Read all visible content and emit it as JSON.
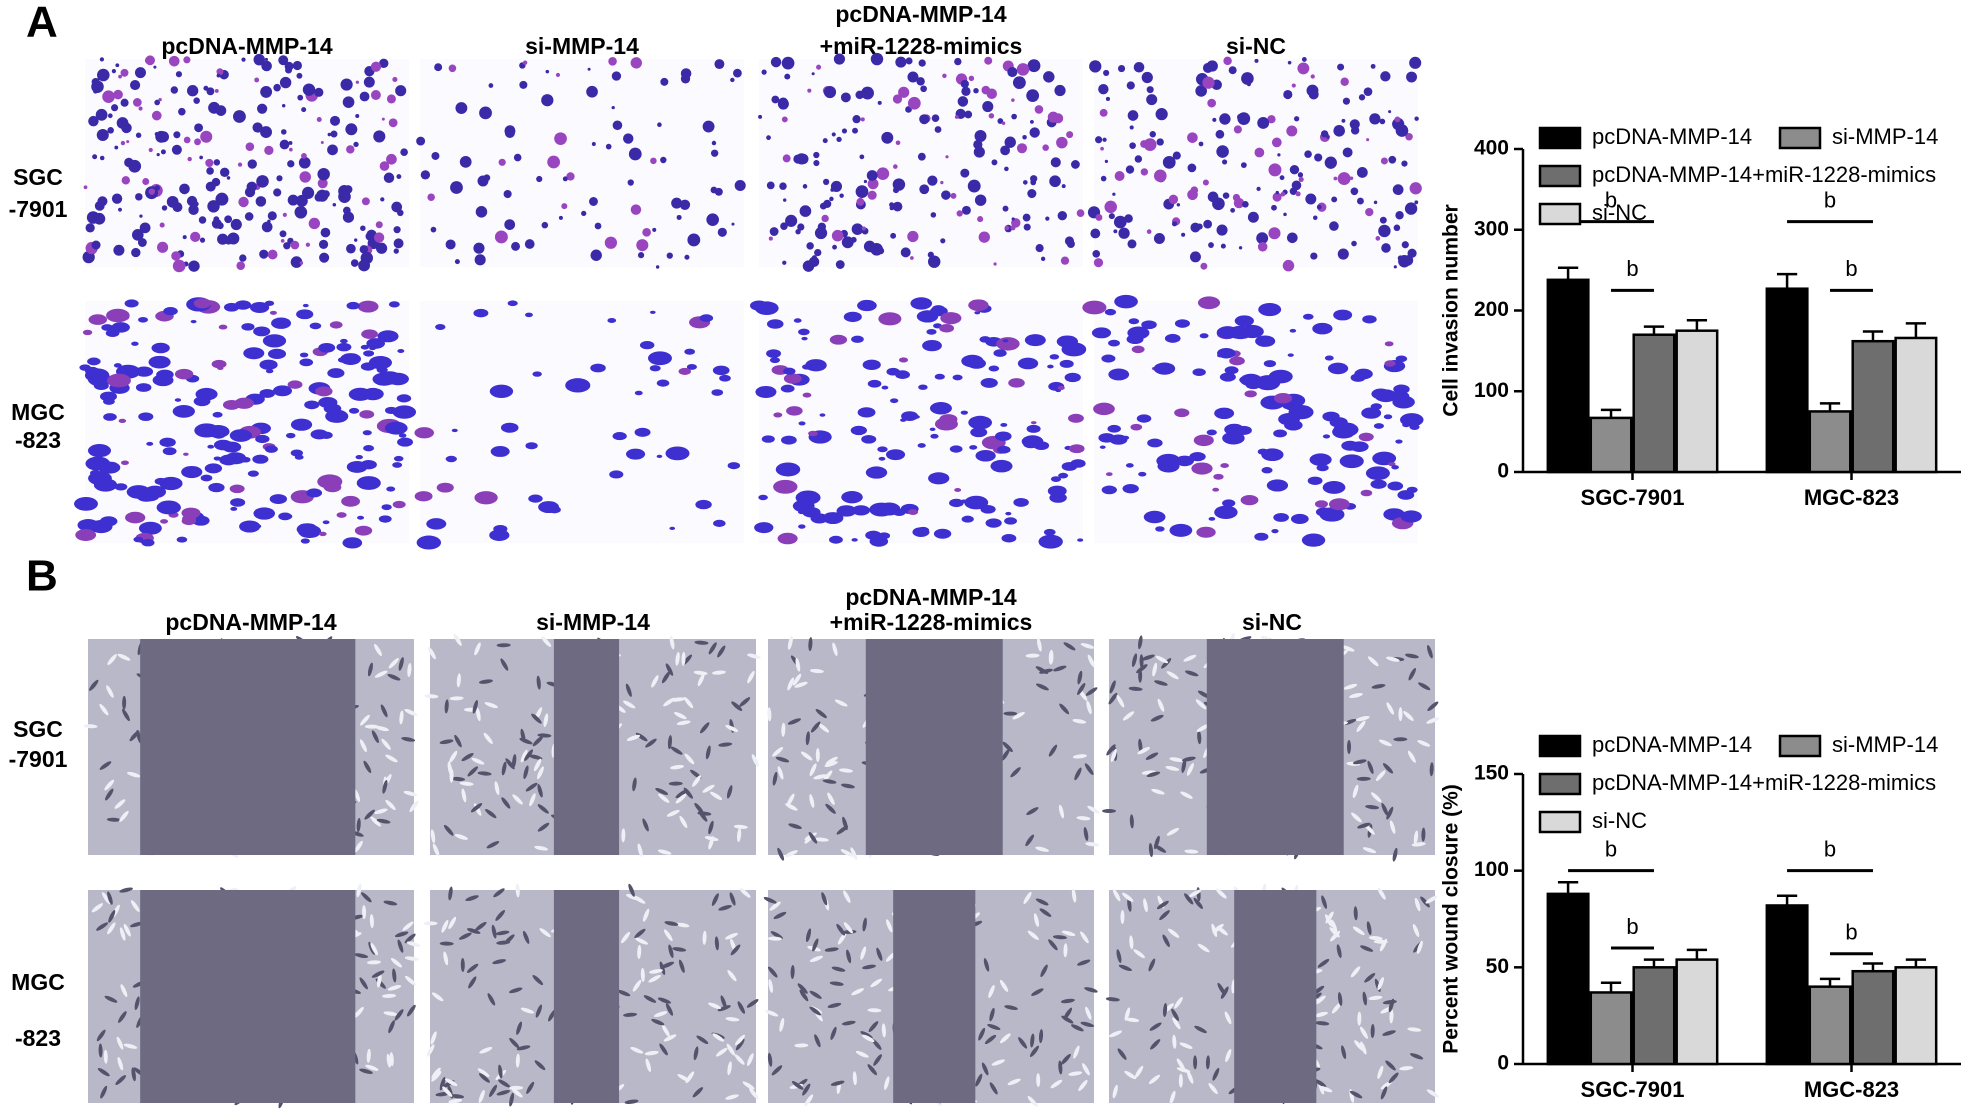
{
  "panels": [
    {
      "label": "A",
      "columns": [
        [
          "pcDNA-MMP-14"
        ],
        [
          "si-MMP-14"
        ],
        [
          "pcDNA-MMP-14",
          "+miR-1228-mimics"
        ],
        [
          "si-NC"
        ]
      ],
      "rows": [
        [
          "SGC",
          "-7901"
        ],
        [
          "MGC",
          "-823"
        ]
      ]
    },
    {
      "label": "B",
      "columns": [
        [
          "pcDNA-MMP-14"
        ],
        [
          "si-MMP-14"
        ],
        [
          "pcDNA-MMP-14",
          "+miR-1228-mimics"
        ],
        [
          "si-NC"
        ]
      ],
      "rows": [
        [
          "SGC",
          "-7901"
        ],
        [
          "MGC",
          "-823"
        ]
      ]
    }
  ],
  "chart_data": [
    {
      "type": "bar",
      "y_label": "Cell invasion number",
      "categories": [
        "SGC-7901",
        "MGC-823"
      ],
      "series": [
        {
          "name": "pcDNA-MMP-14",
          "color": "#000000",
          "values": [
            238,
            227
          ],
          "errors": [
            15,
            18
          ]
        },
        {
          "name": "si-MMP-14",
          "color": "#8c8c8c",
          "values": [
            67,
            75
          ],
          "errors": [
            10,
            10
          ]
        },
        {
          "name": "pcDNA-MMP-14+miR-1228-mimics",
          "color": "#6e6e6e",
          "values": [
            170,
            162
          ],
          "errors": [
            10,
            12
          ]
        },
        {
          "name": "si-NC",
          "color": "#d9d9d9",
          "values": [
            175,
            166
          ],
          "errors": [
            13,
            18
          ]
        }
      ],
      "ylim": [
        0,
        400
      ],
      "yticks": [
        0,
        100,
        200,
        300,
        400
      ],
      "legend": "top",
      "annotations": [
        {
          "text": "b",
          "category": 0,
          "series": [
            0,
            2
          ],
          "y": 310
        },
        {
          "text": "b",
          "category": 0,
          "series": [
            1,
            2
          ],
          "y": 225
        },
        {
          "text": "b",
          "category": 1,
          "series": [
            0,
            2
          ],
          "y": 310
        },
        {
          "text": "b",
          "category": 1,
          "series": [
            1,
            2
          ],
          "y": 225
        }
      ]
    },
    {
      "type": "bar",
      "y_label": "Percent wound closure (%)",
      "categories": [
        "SGC-7901",
        "MGC-823"
      ],
      "series": [
        {
          "name": "pcDNA-MMP-14",
          "color": "#000000",
          "values": [
            88,
            82
          ],
          "errors": [
            6,
            5
          ]
        },
        {
          "name": "si-MMP-14",
          "color": "#8c8c8c",
          "values": [
            37,
            40
          ],
          "errors": [
            5,
            4
          ]
        },
        {
          "name": "pcDNA-MMP-14+miR-1228-mimics",
          "color": "#6e6e6e",
          "values": [
            50,
            48
          ],
          "errors": [
            4,
            4
          ]
        },
        {
          "name": "si-NC",
          "color": "#d9d9d9",
          "values": [
            54,
            50
          ],
          "errors": [
            5,
            4
          ]
        }
      ],
      "ylim": [
        0,
        150
      ],
      "yticks": [
        0,
        50,
        100,
        150
      ],
      "legend": "top",
      "annotations": [
        {
          "text": "b",
          "category": 0,
          "series": [
            0,
            2
          ],
          "y": 100
        },
        {
          "text": "b",
          "category": 0,
          "series": [
            1,
            2
          ],
          "y": 60
        },
        {
          "text": "b",
          "category": 1,
          "series": [
            0,
            2
          ],
          "y": 100
        },
        {
          "text": "b",
          "category": 1,
          "series": [
            1,
            2
          ],
          "y": 57
        }
      ]
    }
  ]
}
